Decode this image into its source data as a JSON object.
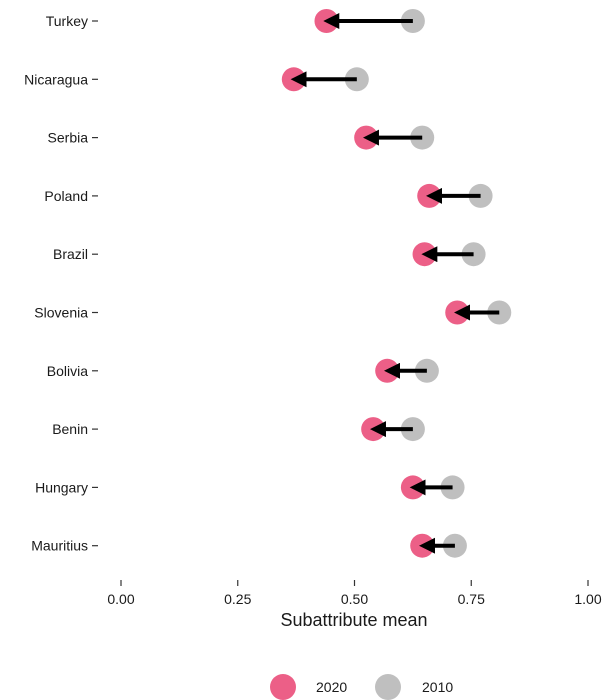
{
  "chart_data": {
    "type": "dumbbell",
    "title": "",
    "xlabel": "Subattribute mean",
    "ylabel": "",
    "xlim": [
      0,
      1
    ],
    "x_ticks": [
      "0.00",
      "0.25",
      "0.50",
      "0.75",
      "1.00"
    ],
    "categories": [
      "Turkey",
      "Nicaragua",
      "Serbia",
      "Poland",
      "Brazil",
      "Slovenia",
      "Bolivia",
      "Benin",
      "Hungary",
      "Mauritius"
    ],
    "series": [
      {
        "name": "2020",
        "color": "#ec5f87",
        "values": [
          0.44,
          0.37,
          0.525,
          0.66,
          0.65,
          0.72,
          0.57,
          0.54,
          0.625,
          0.645
        ]
      },
      {
        "name": "2010",
        "color": "#bfbfbf",
        "values": [
          0.625,
          0.505,
          0.645,
          0.77,
          0.755,
          0.81,
          0.655,
          0.625,
          0.71,
          0.715
        ]
      }
    ],
    "arrow": {
      "from": "2010",
      "to": "2020",
      "color": "#000000"
    },
    "grid": false,
    "legend_position": "bottom"
  }
}
